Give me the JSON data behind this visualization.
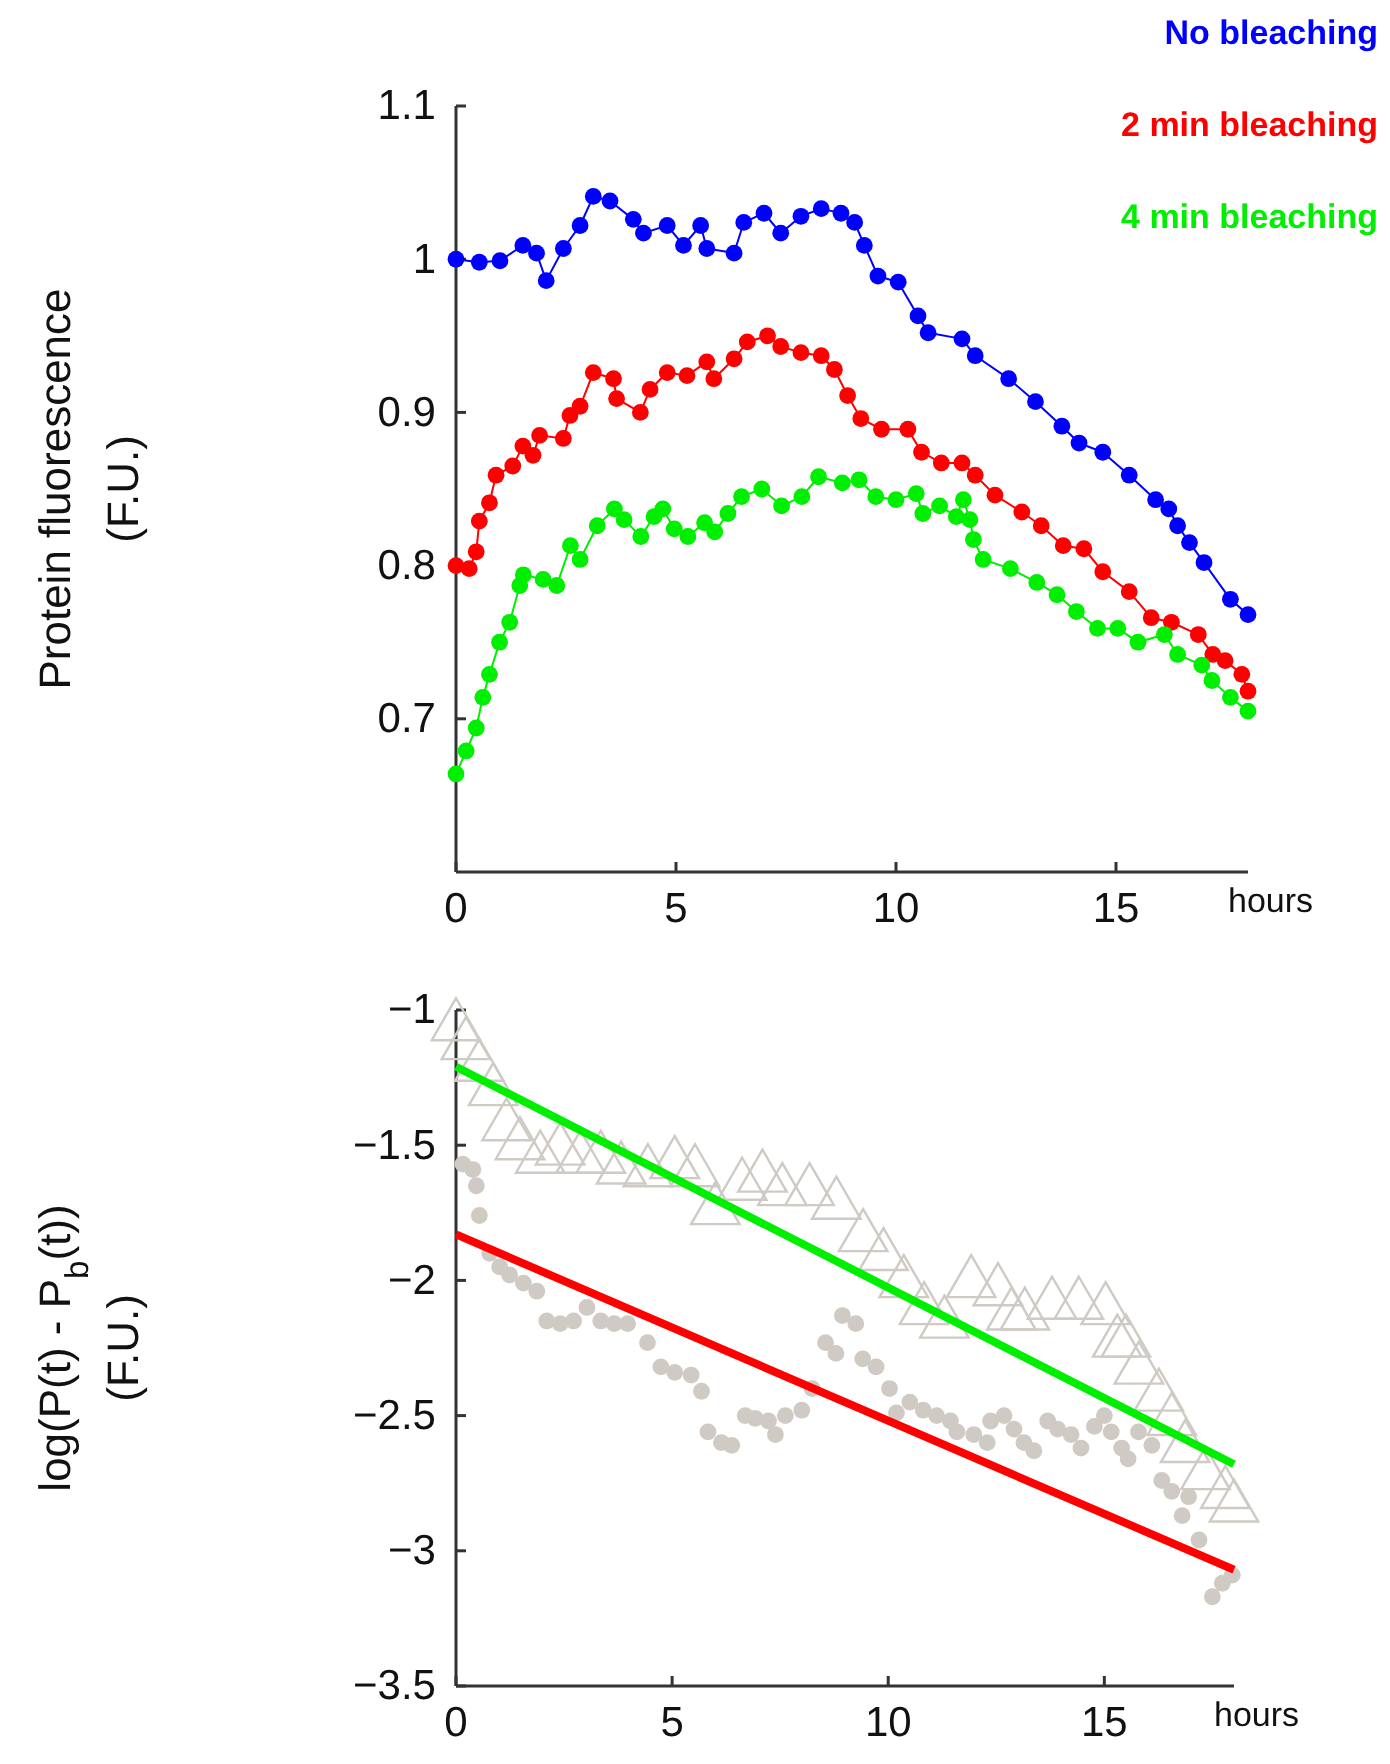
{
  "chart_data": [
    {
      "type": "line",
      "ylabel": "Protein fluorescence\n(F.U.)",
      "xlabel": "hours",
      "xlim": [
        0,
        18
      ],
      "xticks": [
        0,
        5,
        10,
        15
      ],
      "ylim": [
        0.6,
        1.1
      ],
      "yticks": [
        0.7,
        0.8,
        0.9,
        1,
        1.1
      ],
      "marker": "circle",
      "legend": "top right",
      "grid": false,
      "series": [
        {
          "name": "No bleaching",
          "color": "#0000ff",
          "x": [
            0,
            0.53,
            1,
            1.52,
            1.83,
            2.05,
            2.44,
            2.82,
            3.12,
            3.5,
            4.03,
            4.26,
            4.8,
            5.17,
            5.56,
            5.7,
            6.32,
            6.54,
            7,
            7.38,
            7.84,
            8.3,
            8.75,
            9.06,
            9.28,
            9.59,
            10.05,
            10.5,
            10.73,
            11.5,
            11.8,
            12.56,
            13.17,
            13.77,
            14.16,
            14.7,
            15.3,
            15.9,
            16.2,
            16.4,
            16.67,
            17,
            17.6,
            18
          ],
          "values": [
            1.0,
            0.998,
            0.999,
            1.009,
            1.004,
            0.986,
            1.007,
            1.022,
            1.041,
            1.038,
            1.026,
            1.017,
            1.022,
            1.009,
            1.022,
            1.007,
            1.004,
            1.024,
            1.03,
            1.017,
            1.028,
            1.033,
            1.03,
            1.024,
            1.009,
            0.989,
            0.985,
            0.963,
            0.952,
            0.948,
            0.937,
            0.922,
            0.907,
            0.891,
            0.88,
            0.874,
            0.859,
            0.843,
            0.837,
            0.826,
            0.815,
            0.802,
            0.778,
            0.768
          ]
        },
        {
          "name": "2 min bleaching",
          "color": "#ff0000",
          "x": [
            0,
            0.3,
            0.46,
            0.53,
            0.76,
            0.91,
            1.29,
            1.52,
            1.75,
            1.9,
            2.44,
            2.59,
            2.82,
            3.12,
            3.58,
            3.65,
            4.19,
            4.41,
            4.8,
            5.25,
            5.7,
            5.86,
            6.32,
            6.62,
            7.08,
            7.38,
            7.84,
            8.3,
            8.6,
            8.9,
            9.2,
            9.67,
            10.27,
            10.58,
            11.03,
            11.5,
            11.8,
            12.25,
            12.86,
            13.3,
            13.8,
            14.27,
            14.7,
            15.3,
            15.8,
            16.26,
            16.87,
            17.2,
            17.48,
            17.86,
            18
          ],
          "values": [
            0.8,
            0.798,
            0.809,
            0.829,
            0.841,
            0.859,
            0.865,
            0.878,
            0.872,
            0.885,
            0.883,
            0.898,
            0.904,
            0.926,
            0.922,
            0.909,
            0.9,
            0.915,
            0.926,
            0.924,
            0.933,
            0.922,
            0.935,
            0.946,
            0.95,
            0.943,
            0.939,
            0.937,
            0.928,
            0.911,
            0.896,
            0.889,
            0.889,
            0.874,
            0.867,
            0.867,
            0.859,
            0.846,
            0.835,
            0.826,
            0.813,
            0.811,
            0.796,
            0.783,
            0.766,
            0.763,
            0.755,
            0.742,
            0.738,
            0.729,
            0.718
          ]
        },
        {
          "name": "4 min bleaching",
          "color": "#00ee00",
          "x": [
            0,
            0.23,
            0.46,
            0.61,
            0.76,
            0.99,
            1.22,
            1.45,
            1.53,
            1.98,
            2.29,
            2.6,
            2.82,
            3.21,
            3.6,
            3.82,
            4.2,
            4.5,
            4.7,
            4.96,
            5.27,
            5.65,
            5.88,
            6.18,
            6.49,
            6.95,
            7.4,
            7.86,
            8.24,
            8.78,
            9.16,
            9.54,
            10.0,
            10.46,
            10.61,
            10.99,
            11.37,
            11.53,
            11.68,
            11.76,
            11.98,
            12.6,
            13.2,
            13.66,
            14.1,
            14.58,
            15.04,
            15.5,
            16.1,
            16.4,
            16.95,
            17.18,
            17.6,
            18
          ],
          "values": [
            0.664,
            0.679,
            0.694,
            0.714,
            0.729,
            0.75,
            0.763,
            0.787,
            0.794,
            0.791,
            0.787,
            0.813,
            0.804,
            0.826,
            0.837,
            0.83,
            0.819,
            0.832,
            0.837,
            0.824,
            0.819,
            0.828,
            0.822,
            0.834,
            0.845,
            0.85,
            0.839,
            0.845,
            0.858,
            0.854,
            0.856,
            0.845,
            0.843,
            0.847,
            0.834,
            0.839,
            0.832,
            0.843,
            0.83,
            0.817,
            0.804,
            0.798,
            0.789,
            0.781,
            0.77,
            0.759,
            0.759,
            0.75,
            0.755,
            0.742,
            0.735,
            0.725,
            0.714,
            0.705
          ]
        }
      ]
    },
    {
      "type": "line",
      "ylabel": "log(P(t) - P$_{b}$(t))\n(F.U.)",
      "xlabel": "hours",
      "xlim": [
        0,
        18
      ],
      "xticks": [
        0,
        5,
        10,
        15
      ],
      "ylim": [
        -3.5,
        -1
      ],
      "yticks": [
        -3.5,
        -3,
        -2.5,
        -2,
        -1.5,
        -1
      ],
      "grid": false,
      "series": [
        {
          "type": "scatter",
          "marker": "circle",
          "color": "#cfcac4",
          "x": [
            0.16,
            0.39,
            0.47,
            0.54,
            0.78,
            1.01,
            1.24,
            1.56,
            1.87,
            2.1,
            2.41,
            2.72,
            3.03,
            3.35,
            3.66,
            3.97,
            4.43,
            4.74,
            5.06,
            5.44,
            5.68,
            5.83,
            6.14,
            6.38,
            6.69,
            6.92,
            7.23,
            7.39,
            7.62,
            8.0,
            8.24,
            8.55,
            8.79,
            8.94,
            9.25,
            9.41,
            9.72,
            10.03,
            10.19,
            10.5,
            10.81,
            11.12,
            11.44,
            11.59,
            11.98,
            12.29,
            12.37,
            12.68,
            12.91,
            13.14,
            13.37,
            13.69,
            13.92,
            14.23,
            14.46,
            14.77,
            15.0,
            15.16,
            15.4,
            15.55,
            15.79,
            16.1,
            16.33,
            16.56,
            16.8,
            16.95,
            17.19,
            17.5,
            17.73,
            17.96
          ],
          "values": [
            -1.57,
            -1.59,
            -1.65,
            -1.76,
            -1.9,
            -1.95,
            -1.98,
            -2.01,
            -2.04,
            -2.15,
            -2.16,
            -2.15,
            -2.1,
            -2.15,
            -2.16,
            -2.16,
            -2.23,
            -2.32,
            -2.34,
            -2.35,
            -2.41,
            -2.56,
            -2.6,
            -2.61,
            -2.5,
            -2.51,
            -2.52,
            -2.57,
            -2.5,
            -2.48,
            -2.4,
            -2.23,
            -2.27,
            -2.13,
            -2.16,
            -2.29,
            -2.32,
            -2.4,
            -2.49,
            -2.45,
            -2.48,
            -2.5,
            -2.52,
            -2.56,
            -2.57,
            -2.6,
            -2.52,
            -2.5,
            -2.55,
            -2.6,
            -2.63,
            -2.52,
            -2.55,
            -2.57,
            -2.62,
            -2.54,
            -2.5,
            -2.56,
            -2.62,
            -2.66,
            -2.56,
            -2.61,
            -2.74,
            -2.78,
            -2.87,
            -2.8,
            -2.96,
            -3.17,
            -3.12,
            -3.09
          ]
        },
        {
          "type": "scatter",
          "marker": "triangle",
          "color": "#cfcac4",
          "x": [
            0,
            0.23,
            0.54,
            0.86,
            1.17,
            1.48,
            1.95,
            2.41,
            2.88,
            3.35,
            3.82,
            4.44,
            5.06,
            5.53,
            6.0,
            6.62,
            7.09,
            7.55,
            8.18,
            8.8,
            9.42,
            9.89,
            10.36,
            10.83,
            11.3,
            11.92,
            12.54,
            12.85,
            13.16,
            13.79,
            14.41,
            15.03,
            15.3,
            15.5,
            15.8,
            16.26,
            16.56,
            16.87,
            17.34,
            17.8,
            18
          ],
          "values": [
            -1.06,
            -1.13,
            -1.21,
            -1.3,
            -1.43,
            -1.5,
            -1.55,
            -1.52,
            -1.55,
            -1.55,
            -1.59,
            -1.6,
            -1.57,
            -1.6,
            -1.74,
            -1.65,
            -1.62,
            -1.67,
            -1.67,
            -1.72,
            -1.84,
            -1.91,
            -2.01,
            -2.11,
            -2.16,
            -2.01,
            -2.04,
            -2.13,
            -2.13,
            -2.09,
            -2.09,
            -2.11,
            -2.23,
            -2.23,
            -2.33,
            -2.43,
            -2.52,
            -2.62,
            -2.72,
            -2.79,
            -2.84
          ]
        },
        {
          "color": "#ff0000",
          "x": [
            0,
            18
          ],
          "values": [
            -1.83,
            -3.07
          ]
        },
        {
          "color": "#00ee00",
          "x": [
            0,
            18
          ],
          "values": [
            -1.21,
            -2.68
          ]
        }
      ]
    }
  ]
}
